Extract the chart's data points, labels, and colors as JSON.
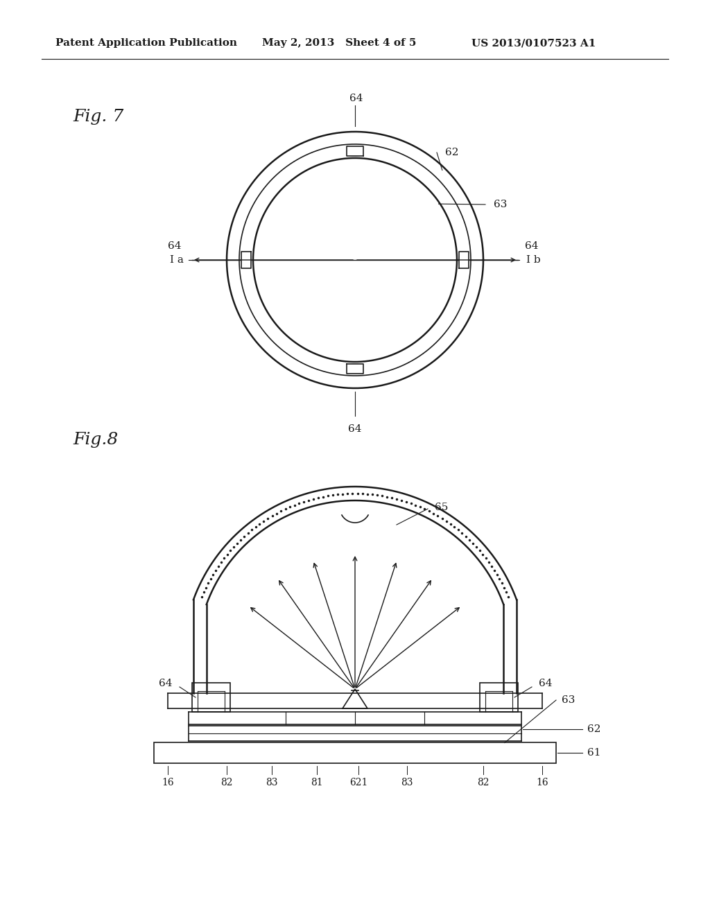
{
  "bg_color": "#ffffff",
  "line_color": "#1a1a1a",
  "header_left": "Patent Application Publication",
  "header_mid": "May 2, 2013   Sheet 4 of 5",
  "header_right": "US 2013/0107523 A1",
  "fig7_label": "Fig. 7",
  "fig8_label": "Fig.8"
}
